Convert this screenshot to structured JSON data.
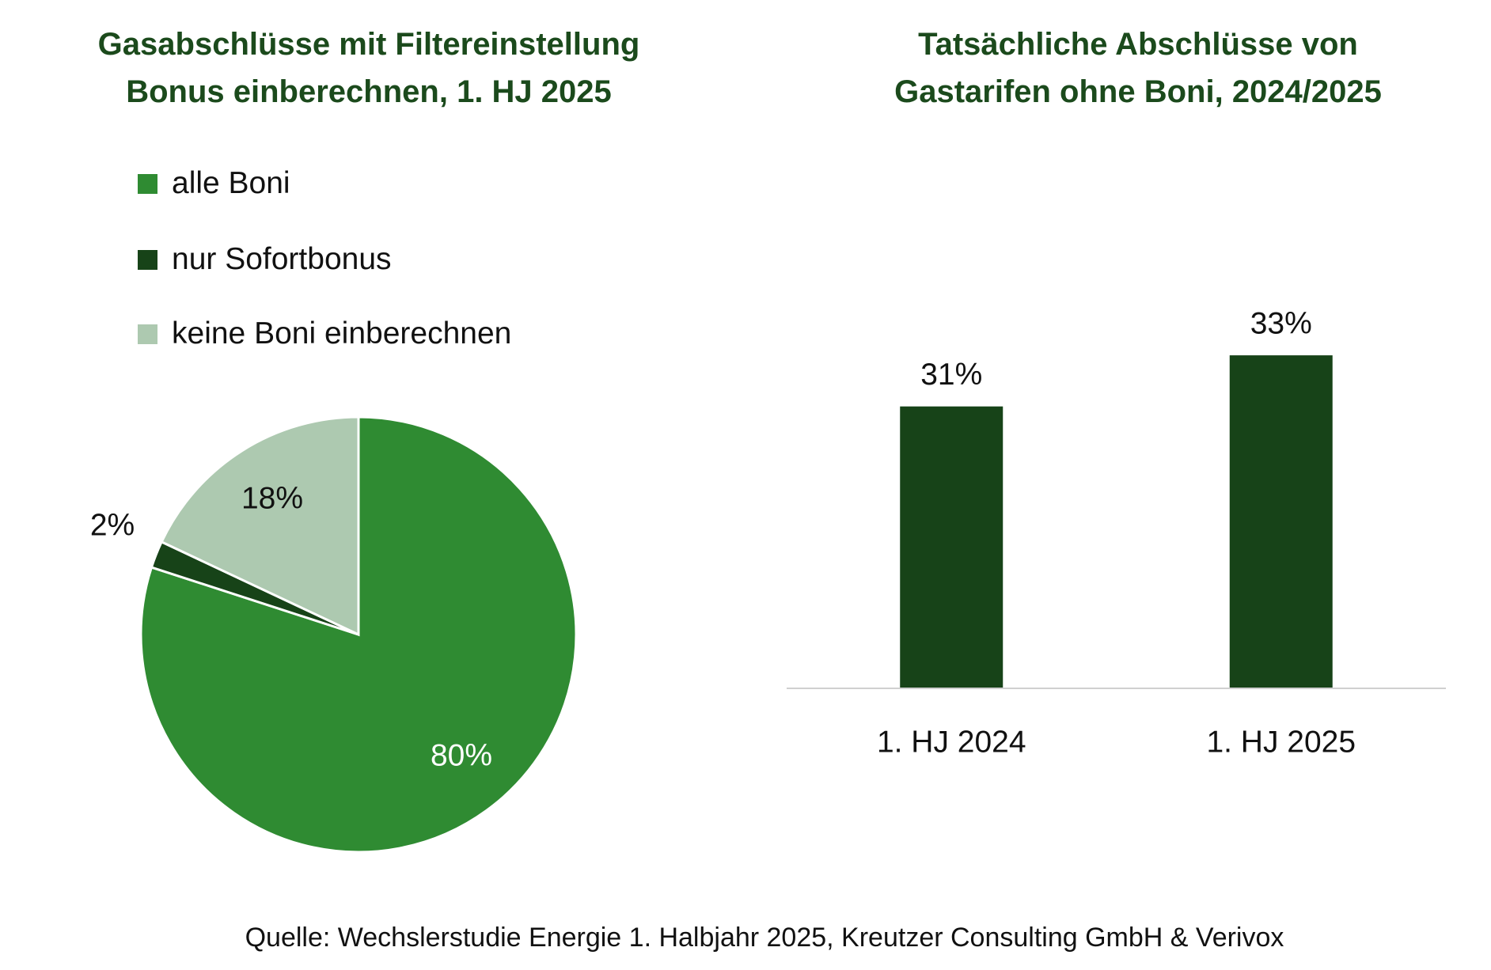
{
  "chart_data": [
    {
      "type": "pie",
      "title": "Gasabschlüsse mit Filtereinstellung Bonus einberechnen, 1. HJ 2025",
      "title_lines": [
        "Gasabschlüsse mit Filtereinstellung",
        "Bonus einberechnen, 1. HJ 2025"
      ],
      "legend_position": "top-left",
      "slices": [
        {
          "label": "alle Boni",
          "value": 80,
          "display": "80%",
          "color": "#2f8b32",
          "label_color": "#ffffff"
        },
        {
          "label": "nur Sofortbonus",
          "value": 2,
          "display": "2%",
          "color": "#174318",
          "label_color": "#111111"
        },
        {
          "label": "keine Boni einberechnen",
          "value": 18,
          "display": "18%",
          "color": "#adc9b0",
          "label_color": "#111111"
        }
      ]
    },
    {
      "type": "bar",
      "title": "Tatsächliche Abschlüsse von Gastarifen ohne Boni, 2024/2025",
      "title_lines": [
        "Tatsächliche Abschlüsse von",
        "Gastarifen ohne Boni, 2024/2025"
      ],
      "categories": [
        "1. HJ 2024",
        "1. HJ 2025"
      ],
      "values": [
        31,
        33
      ],
      "data_labels": [
        "31%",
        "33%"
      ],
      "color": "#174318",
      "ylim": [
        20,
        40
      ],
      "grid": false
    }
  ],
  "source": "Quelle: Wechslerstudie Energie 1. Halbjahr 2025, Kreutzer Consulting GmbH & Verivox"
}
